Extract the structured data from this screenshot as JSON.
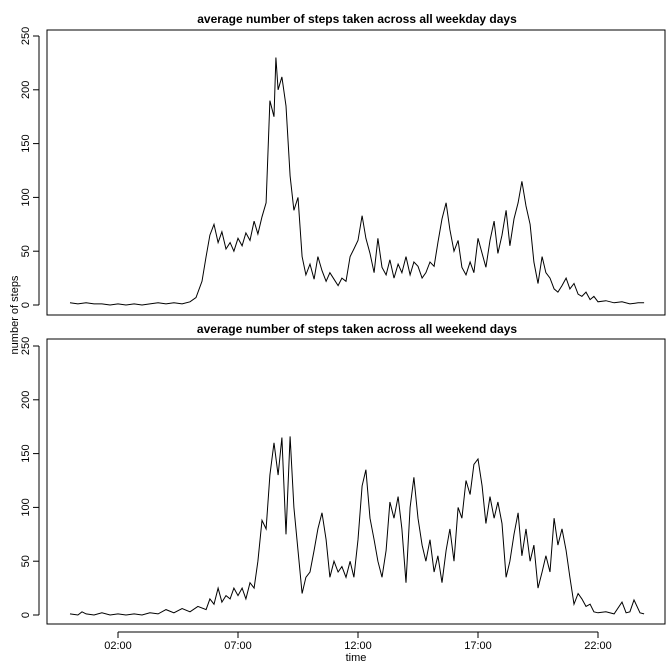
{
  "figure": {
    "xlabel": "time",
    "ylabel": "number of steps"
  },
  "chart_data": [
    {
      "type": "line",
      "title": "average number of steps taken across all weekday days",
      "xlabel": "time",
      "ylabel": "number of steps",
      "ylim": [
        0,
        250
      ],
      "yticks": [
        0,
        50,
        100,
        150,
        200,
        250
      ],
      "xticks": [
        "02:00",
        "07:00",
        "12:00",
        "17:00",
        "22:00"
      ],
      "grid": false,
      "x_unit": "hour of day",
      "points": [
        [
          0,
          2
        ],
        [
          0.33,
          1
        ],
        [
          0.67,
          2
        ],
        [
          1,
          1
        ],
        [
          1.33,
          1
        ],
        [
          1.67,
          0
        ],
        [
          2,
          1
        ],
        [
          2.33,
          0
        ],
        [
          2.67,
          1
        ],
        [
          3,
          0
        ],
        [
          3.33,
          1
        ],
        [
          3.67,
          2
        ],
        [
          4,
          1
        ],
        [
          4.33,
          2
        ],
        [
          4.67,
          1
        ],
        [
          5,
          3
        ],
        [
          5.25,
          7
        ],
        [
          5.5,
          22
        ],
        [
          5.67,
          45
        ],
        [
          5.83,
          65
        ],
        [
          6,
          75
        ],
        [
          6.17,
          58
        ],
        [
          6.33,
          68
        ],
        [
          6.5,
          52
        ],
        [
          6.67,
          58
        ],
        [
          6.83,
          50
        ],
        [
          7,
          62
        ],
        [
          7.17,
          55
        ],
        [
          7.33,
          67
        ],
        [
          7.5,
          60
        ],
        [
          7.67,
          78
        ],
        [
          7.83,
          66
        ],
        [
          8,
          82
        ],
        [
          8.17,
          95
        ],
        [
          8.33,
          190
        ],
        [
          8.5,
          175
        ],
        [
          8.58,
          230
        ],
        [
          8.67,
          200
        ],
        [
          8.83,
          212
        ],
        [
          9,
          185
        ],
        [
          9.17,
          120
        ],
        [
          9.33,
          88
        ],
        [
          9.5,
          100
        ],
        [
          9.67,
          45
        ],
        [
          9.83,
          28
        ],
        [
          10,
          38
        ],
        [
          10.17,
          24
        ],
        [
          10.33,
          45
        ],
        [
          10.5,
          32
        ],
        [
          10.67,
          22
        ],
        [
          10.83,
          30
        ],
        [
          11,
          24
        ],
        [
          11.17,
          18
        ],
        [
          11.33,
          25
        ],
        [
          11.5,
          22
        ],
        [
          11.67,
          45
        ],
        [
          11.83,
          52
        ],
        [
          12,
          60
        ],
        [
          12.17,
          83
        ],
        [
          12.33,
          62
        ],
        [
          12.5,
          48
        ],
        [
          12.67,
          30
        ],
        [
          12.83,
          62
        ],
        [
          13,
          35
        ],
        [
          13.17,
          28
        ],
        [
          13.33,
          42
        ],
        [
          13.5,
          25
        ],
        [
          13.67,
          38
        ],
        [
          13.83,
          30
        ],
        [
          14,
          45
        ],
        [
          14.17,
          28
        ],
        [
          14.33,
          40
        ],
        [
          14.5,
          36
        ],
        [
          14.67,
          25
        ],
        [
          14.83,
          30
        ],
        [
          15,
          40
        ],
        [
          15.17,
          36
        ],
        [
          15.33,
          58
        ],
        [
          15.5,
          80
        ],
        [
          15.67,
          95
        ],
        [
          15.83,
          70
        ],
        [
          16,
          50
        ],
        [
          16.17,
          60
        ],
        [
          16.33,
          35
        ],
        [
          16.5,
          28
        ],
        [
          16.67,
          40
        ],
        [
          16.83,
          30
        ],
        [
          17,
          62
        ],
        [
          17.17,
          48
        ],
        [
          17.33,
          35
        ],
        [
          17.5,
          60
        ],
        [
          17.67,
          78
        ],
        [
          17.83,
          48
        ],
        [
          18,
          65
        ],
        [
          18.17,
          88
        ],
        [
          18.33,
          55
        ],
        [
          18.5,
          80
        ],
        [
          18.67,
          95
        ],
        [
          18.83,
          115
        ],
        [
          19,
          92
        ],
        [
          19.17,
          75
        ],
        [
          19.33,
          40
        ],
        [
          19.5,
          20
        ],
        [
          19.67,
          45
        ],
        [
          19.83,
          30
        ],
        [
          20,
          25
        ],
        [
          20.17,
          15
        ],
        [
          20.33,
          12
        ],
        [
          20.5,
          18
        ],
        [
          20.67,
          25
        ],
        [
          20.83,
          15
        ],
        [
          21,
          20
        ],
        [
          21.17,
          10
        ],
        [
          21.33,
          8
        ],
        [
          21.5,
          12
        ],
        [
          21.67,
          5
        ],
        [
          21.83,
          8
        ],
        [
          22,
          3
        ],
        [
          22.33,
          4
        ],
        [
          22.67,
          2
        ],
        [
          23,
          3
        ],
        [
          23.33,
          1
        ],
        [
          23.67,
          2
        ],
        [
          23.92,
          2
        ]
      ]
    },
    {
      "type": "line",
      "title": "average number of steps taken across all weekend days",
      "xlabel": "time",
      "ylabel": "number of steps",
      "ylim": [
        0,
        250
      ],
      "yticks": [
        0,
        50,
        100,
        150,
        200,
        250
      ],
      "xticks": [
        "02:00",
        "07:00",
        "12:00",
        "17:00",
        "22:00"
      ],
      "grid": false,
      "x_unit": "hour of day",
      "points": [
        [
          0,
          1
        ],
        [
          0.33,
          0
        ],
        [
          0.5,
          3
        ],
        [
          0.67,
          1
        ],
        [
          1,
          0
        ],
        [
          1.33,
          2
        ],
        [
          1.67,
          0
        ],
        [
          2,
          1
        ],
        [
          2.33,
          0
        ],
        [
          2.67,
          1
        ],
        [
          3,
          0
        ],
        [
          3.33,
          2
        ],
        [
          3.67,
          1
        ],
        [
          4,
          5
        ],
        [
          4.33,
          2
        ],
        [
          4.67,
          6
        ],
        [
          5,
          3
        ],
        [
          5.33,
          8
        ],
        [
          5.67,
          5
        ],
        [
          5.83,
          15
        ],
        [
          6,
          10
        ],
        [
          6.17,
          25
        ],
        [
          6.33,
          12
        ],
        [
          6.5,
          18
        ],
        [
          6.67,
          15
        ],
        [
          6.83,
          25
        ],
        [
          7,
          18
        ],
        [
          7.17,
          25
        ],
        [
          7.33,
          15
        ],
        [
          7.5,
          30
        ],
        [
          7.67,
          25
        ],
        [
          7.83,
          50
        ],
        [
          8,
          88
        ],
        [
          8.17,
          80
        ],
        [
          8.33,
          130
        ],
        [
          8.5,
          160
        ],
        [
          8.67,
          130
        ],
        [
          8.83,
          165
        ],
        [
          9,
          75
        ],
        [
          9.17,
          166
        ],
        [
          9.33,
          100
        ],
        [
          9.5,
          60
        ],
        [
          9.67,
          20
        ],
        [
          9.83,
          35
        ],
        [
          10,
          40
        ],
        [
          10.17,
          60
        ],
        [
          10.33,
          80
        ],
        [
          10.5,
          95
        ],
        [
          10.67,
          70
        ],
        [
          10.83,
          35
        ],
        [
          11,
          50
        ],
        [
          11.17,
          40
        ],
        [
          11.33,
          45
        ],
        [
          11.5,
          35
        ],
        [
          11.67,
          50
        ],
        [
          11.83,
          35
        ],
        [
          12,
          70
        ],
        [
          12.17,
          120
        ],
        [
          12.33,
          135
        ],
        [
          12.5,
          90
        ],
        [
          12.67,
          70
        ],
        [
          12.83,
          50
        ],
        [
          13,
          35
        ],
        [
          13.17,
          60
        ],
        [
          13.33,
          105
        ],
        [
          13.5,
          90
        ],
        [
          13.67,
          110
        ],
        [
          13.83,
          80
        ],
        [
          14,
          30
        ],
        [
          14.17,
          100
        ],
        [
          14.33,
          128
        ],
        [
          14.5,
          90
        ],
        [
          14.67,
          65
        ],
        [
          14.83,
          50
        ],
        [
          15,
          70
        ],
        [
          15.17,
          40
        ],
        [
          15.33,
          55
        ],
        [
          15.5,
          30
        ],
        [
          15.67,
          60
        ],
        [
          15.83,
          80
        ],
        [
          16,
          50
        ],
        [
          16.17,
          100
        ],
        [
          16.33,
          90
        ],
        [
          16.5,
          125
        ],
        [
          16.67,
          112
        ],
        [
          16.83,
          140
        ],
        [
          17,
          145
        ],
        [
          17.17,
          120
        ],
        [
          17.33,
          85
        ],
        [
          17.5,
          110
        ],
        [
          17.67,
          90
        ],
        [
          17.83,
          105
        ],
        [
          18,
          85
        ],
        [
          18.17,
          35
        ],
        [
          18.33,
          50
        ],
        [
          18.5,
          75
        ],
        [
          18.67,
          95
        ],
        [
          18.83,
          55
        ],
        [
          19,
          80
        ],
        [
          19.17,
          50
        ],
        [
          19.33,
          65
        ],
        [
          19.5,
          25
        ],
        [
          19.67,
          40
        ],
        [
          19.83,
          55
        ],
        [
          20,
          40
        ],
        [
          20.17,
          90
        ],
        [
          20.33,
          65
        ],
        [
          20.5,
          80
        ],
        [
          20.67,
          60
        ],
        [
          20.83,
          35
        ],
        [
          21,
          10
        ],
        [
          21.17,
          20
        ],
        [
          21.33,
          15
        ],
        [
          21.5,
          8
        ],
        [
          21.67,
          10
        ],
        [
          21.83,
          3
        ],
        [
          22,
          2
        ],
        [
          22.33,
          3
        ],
        [
          22.67,
          1
        ],
        [
          23,
          12
        ],
        [
          23.17,
          2
        ],
        [
          23.33,
          3
        ],
        [
          23.5,
          14
        ],
        [
          23.75,
          2
        ],
        [
          23.92,
          1
        ]
      ]
    }
  ]
}
